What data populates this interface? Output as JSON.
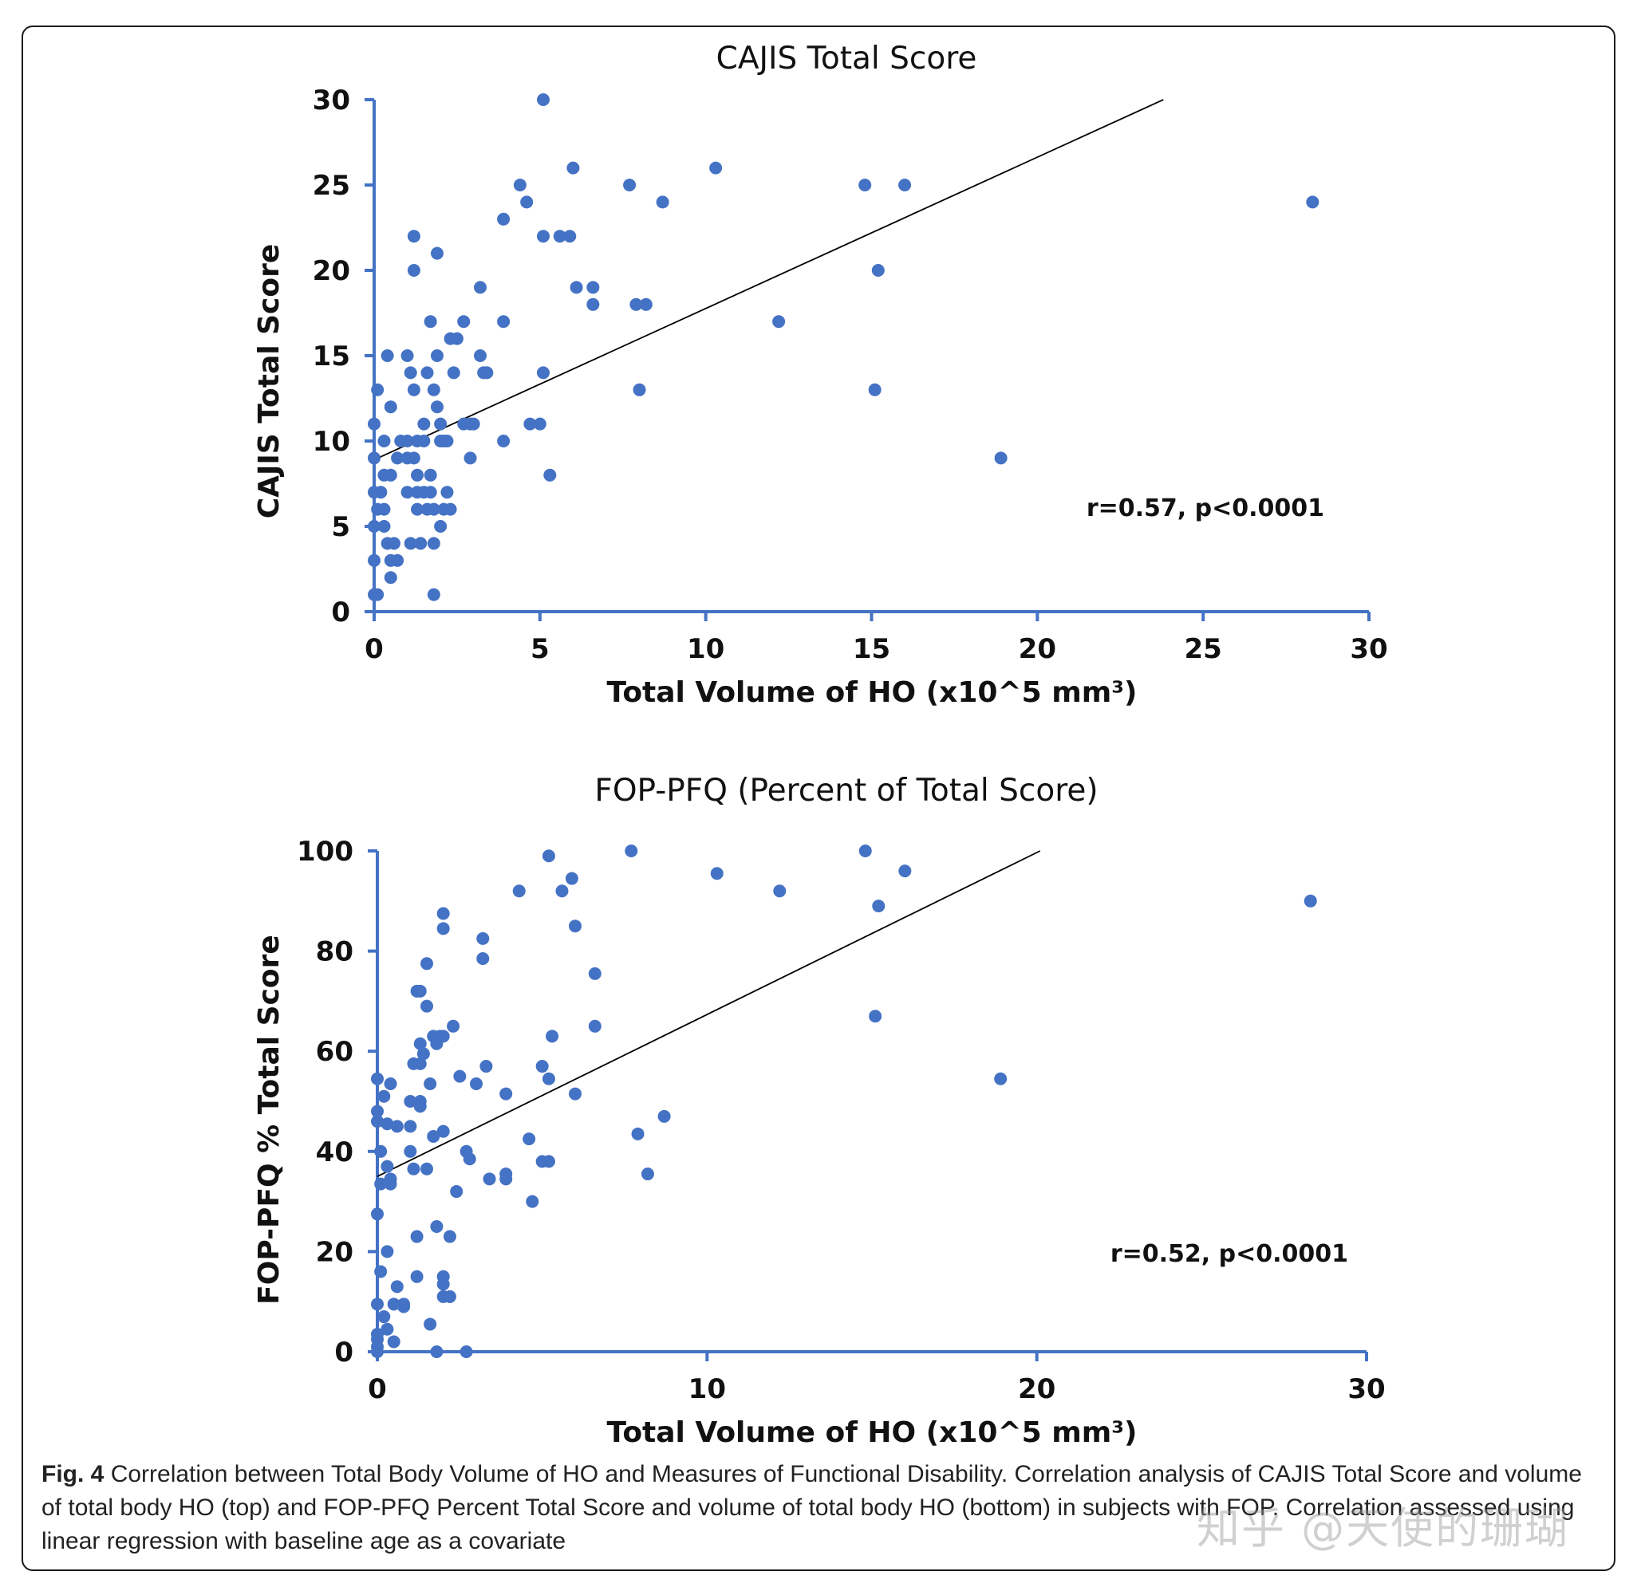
{
  "colors": {
    "marker": "#4472C4",
    "axis": "#4472C4",
    "trend": "#000000",
    "text": "#111111"
  },
  "chart_data": [
    {
      "type": "scatter",
      "title": "CAJIS Total Score",
      "xlabel": "Total Volume of HO (x10^5 mm³)",
      "ylabel": "CAJIS Total Score",
      "xlim": [
        0,
        30
      ],
      "ylim": [
        0,
        30
      ],
      "xticks": [
        0,
        5,
        10,
        15,
        20,
        25,
        30
      ],
      "yticks": [
        0,
        5,
        10,
        15,
        20,
        25,
        30
      ],
      "grid": false,
      "annotation": "r=0.57, p<0.0001",
      "trendline": {
        "x": [
          0,
          23.8
        ],
        "y": [
          8.9,
          30
        ]
      },
      "points": [
        [
          5.1,
          30
        ],
        [
          6.0,
          26
        ],
        [
          10.3,
          26
        ],
        [
          4.4,
          25
        ],
        [
          7.7,
          25
        ],
        [
          14.8,
          25
        ],
        [
          16.0,
          25
        ],
        [
          28.3,
          24
        ],
        [
          4.6,
          24
        ],
        [
          8.7,
          24
        ],
        [
          3.9,
          23
        ],
        [
          1.2,
          22
        ],
        [
          5.1,
          22
        ],
        [
          5.6,
          22
        ],
        [
          5.9,
          22
        ],
        [
          1.9,
          21
        ],
        [
          1.2,
          20
        ],
        [
          15.2,
          20
        ],
        [
          3.2,
          19
        ],
        [
          6.1,
          19
        ],
        [
          6.6,
          19
        ],
        [
          7.9,
          18
        ],
        [
          8.2,
          18
        ],
        [
          6.6,
          18
        ],
        [
          1.7,
          17
        ],
        [
          2.7,
          17
        ],
        [
          3.9,
          17
        ],
        [
          12.2,
          17
        ],
        [
          2.3,
          16
        ],
        [
          2.5,
          16
        ],
        [
          0.4,
          15
        ],
        [
          1.0,
          15
        ],
        [
          1.9,
          15
        ],
        [
          3.2,
          15
        ],
        [
          1.1,
          14
        ],
        [
          1.6,
          14
        ],
        [
          2.4,
          14
        ],
        [
          3.3,
          14
        ],
        [
          3.4,
          14
        ],
        [
          5.1,
          14
        ],
        [
          0.1,
          13
        ],
        [
          1.2,
          13
        ],
        [
          1.8,
          13
        ],
        [
          8.0,
          13
        ],
        [
          15.1,
          13
        ],
        [
          0.5,
          12
        ],
        [
          1.9,
          12
        ],
        [
          0.0,
          11
        ],
        [
          1.5,
          11
        ],
        [
          2.0,
          11
        ],
        [
          2.7,
          11
        ],
        [
          2.9,
          11
        ],
        [
          3.0,
          11
        ],
        [
          4.7,
          11
        ],
        [
          5.0,
          11
        ],
        [
          0.3,
          10
        ],
        [
          0.8,
          10
        ],
        [
          1.0,
          10
        ],
        [
          1.3,
          10
        ],
        [
          1.5,
          10
        ],
        [
          2.0,
          10
        ],
        [
          2.1,
          10
        ],
        [
          2.2,
          10
        ],
        [
          3.9,
          10
        ],
        [
          0.0,
          9
        ],
        [
          0.7,
          9
        ],
        [
          1.0,
          9
        ],
        [
          1.2,
          9
        ],
        [
          2.9,
          9
        ],
        [
          18.9,
          9
        ],
        [
          0.3,
          8
        ],
        [
          0.5,
          8
        ],
        [
          1.3,
          8
        ],
        [
          1.7,
          8
        ],
        [
          5.3,
          8
        ],
        [
          0.0,
          7
        ],
        [
          0.2,
          7
        ],
        [
          1.0,
          7
        ],
        [
          1.3,
          7
        ],
        [
          1.5,
          7
        ],
        [
          1.7,
          7
        ],
        [
          2.2,
          7
        ],
        [
          0.1,
          6
        ],
        [
          0.3,
          6
        ],
        [
          1.3,
          6
        ],
        [
          1.6,
          6
        ],
        [
          1.8,
          6
        ],
        [
          2.1,
          6
        ],
        [
          2.3,
          6
        ],
        [
          0.0,
          5
        ],
        [
          0.3,
          5
        ],
        [
          2.0,
          5
        ],
        [
          0.4,
          4
        ],
        [
          0.6,
          4
        ],
        [
          1.1,
          4
        ],
        [
          1.4,
          4
        ],
        [
          1.8,
          4
        ],
        [
          0.0,
          3
        ],
        [
          0.5,
          3
        ],
        [
          0.7,
          3
        ],
        [
          0.5,
          2
        ],
        [
          0.0,
          1
        ],
        [
          0.1,
          1
        ],
        [
          1.8,
          1
        ]
      ]
    },
    {
      "type": "scatter",
      "title": "FOP-PFQ (Percent of Total Score)",
      "xlabel": "Total Volume of HO (x10^5 mm³)",
      "ylabel": "FOP-PFQ % Total Score",
      "xlim": [
        0,
        30
      ],
      "ylim": [
        0,
        100
      ],
      "xticks": [
        0,
        10,
        20,
        30
      ],
      "yticks": [
        0,
        20,
        40,
        60,
        80,
        100
      ],
      "grid": false,
      "annotation": "r=0.52, p<0.0001",
      "trendline": {
        "x": [
          0,
          20.1
        ],
        "y": [
          35,
          100
        ]
      },
      "points": [
        [
          7.7,
          100
        ],
        [
          14.8,
          100
        ],
        [
          5.2,
          99
        ],
        [
          16.0,
          96
        ],
        [
          10.3,
          95.5
        ],
        [
          5.9,
          94.5
        ],
        [
          4.3,
          92
        ],
        [
          5.6,
          92
        ],
        [
          12.2,
          92
        ],
        [
          28.3,
          90
        ],
        [
          15.2,
          89
        ],
        [
          2.0,
          87.5
        ],
        [
          2.0,
          84.5
        ],
        [
          6.0,
          85
        ],
        [
          3.2,
          82.5
        ],
        [
          3.2,
          78.5
        ],
        [
          1.5,
          77.5
        ],
        [
          6.6,
          75.5
        ],
        [
          1.2,
          72
        ],
        [
          1.3,
          72
        ],
        [
          1.5,
          69
        ],
        [
          15.1,
          67
        ],
        [
          2.3,
          65
        ],
        [
          6.6,
          65
        ],
        [
          1.7,
          63
        ],
        [
          1.9,
          63
        ],
        [
          2.0,
          63
        ],
        [
          5.3,
          63
        ],
        [
          1.3,
          61.5
        ],
        [
          1.8,
          61.5
        ],
        [
          1.4,
          59.5
        ],
        [
          1.1,
          57.5
        ],
        [
          1.3,
          57.5
        ],
        [
          3.3,
          57
        ],
        [
          5.0,
          57
        ],
        [
          2.5,
          55
        ],
        [
          0.0,
          54.5
        ],
        [
          5.2,
          54.5
        ],
        [
          18.9,
          54.5
        ],
        [
          1.6,
          53.5
        ],
        [
          3.0,
          53.5
        ],
        [
          0.4,
          53.5
        ],
        [
          3.9,
          51.5
        ],
        [
          6.0,
          51.5
        ],
        [
          0.2,
          51
        ],
        [
          1.0,
          50
        ],
        [
          1.3,
          50
        ],
        [
          1.3,
          49
        ],
        [
          0.0,
          48
        ],
        [
          0.0,
          46
        ],
        [
          0.3,
          45.5
        ],
        [
          0.6,
          45
        ],
        [
          1.0,
          45
        ],
        [
          2.0,
          44
        ],
        [
          1.7,
          43
        ],
        [
          4.6,
          42.5
        ],
        [
          0.1,
          40
        ],
        [
          2.7,
          40
        ],
        [
          1.0,
          40
        ],
        [
          7.9,
          43.5
        ],
        [
          8.7,
          47
        ],
        [
          2.8,
          38.5
        ],
        [
          5.0,
          38
        ],
        [
          5.2,
          38
        ],
        [
          0.3,
          37
        ],
        [
          1.1,
          36.5
        ],
        [
          1.5,
          36.5
        ],
        [
          3.4,
          34.5
        ],
        [
          3.9,
          34.5
        ],
        [
          3.9,
          35.5
        ],
        [
          8.2,
          35.5
        ],
        [
          0.4,
          34.5
        ],
        [
          0.4,
          33.5
        ],
        [
          0.1,
          33.5
        ],
        [
          2.4,
          32
        ],
        [
          4.7,
          30
        ],
        [
          0.0,
          27.5
        ],
        [
          1.8,
          25
        ],
        [
          2.2,
          23
        ],
        [
          1.2,
          23
        ],
        [
          0.3,
          20
        ],
        [
          0.1,
          16
        ],
        [
          1.2,
          15
        ],
        [
          2.0,
          15
        ],
        [
          2.0,
          13.5
        ],
        [
          0.6,
          13
        ],
        [
          2.0,
          11
        ],
        [
          2.2,
          11
        ],
        [
          0.0,
          9.5
        ],
        [
          0.5,
          9.5
        ],
        [
          0.8,
          9.5
        ],
        [
          0.8,
          9
        ],
        [
          0.2,
          7
        ],
        [
          0.3,
          4.5
        ],
        [
          1.6,
          5.5
        ],
        [
          0.0,
          3.5
        ],
        [
          0.0,
          2.5
        ],
        [
          0.5,
          2
        ],
        [
          0.0,
          1
        ],
        [
          0.0,
          0
        ],
        [
          1.8,
          0
        ],
        [
          2.7,
          0
        ]
      ]
    }
  ],
  "caption": {
    "label": "Fig. 4",
    "text": "Correlation between Total Body Volume of HO and Measures of Functional Disability. Correlation analysis of CAJIS Total Score and volume of total body HO (top) and FOP-PFQ Percent Total Score and volume of total body HO (bottom) in subjects with FOP. Correlation assessed using linear regression with baseline age as a covariate"
  },
  "watermark": "知乎 @天使的珊瑚"
}
